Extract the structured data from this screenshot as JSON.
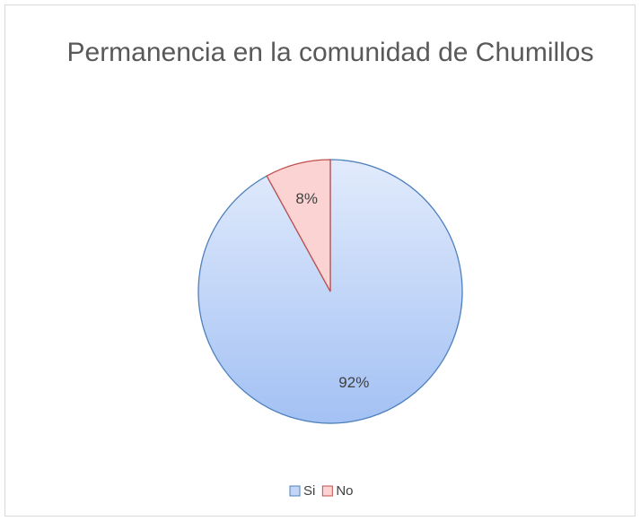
{
  "chart_data": {
    "type": "pie",
    "title": "Permanencia en la comunidad de Chumillos",
    "categories": [
      "Si",
      "No"
    ],
    "values": [
      92,
      8
    ],
    "value_labels": [
      "92%",
      "8%"
    ],
    "colors": [
      "#c3d6f8",
      "#fbd3d3"
    ],
    "edge_colors": [
      "#4f81bd",
      "#c0504d"
    ],
    "legend": "bottom"
  }
}
